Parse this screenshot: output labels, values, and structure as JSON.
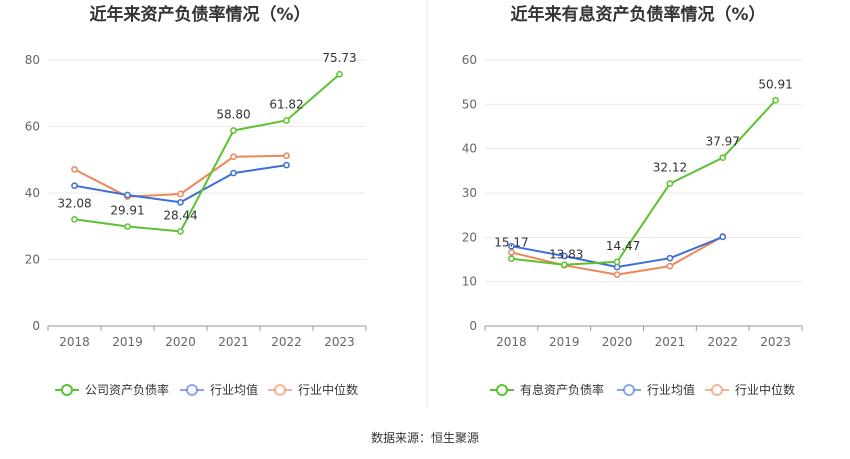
{
  "source": "数据来源：恒生聚源",
  "chart_data": [
    {
      "type": "line",
      "title": "近年来资产负债率情况（%）",
      "categories": [
        "2018",
        "2019",
        "2020",
        "2021",
        "2022",
        "2023"
      ],
      "ylim": [
        0,
        80
      ],
      "yticks": [
        0,
        20,
        40,
        60,
        80
      ],
      "grid": true,
      "legend_position": "bottom",
      "series": [
        {
          "name": "公司资产负债率",
          "color": "#5cc22f",
          "values": [
            32.08,
            29.91,
            28.44,
            58.8,
            61.82,
            75.73
          ],
          "labels": [
            "32.08",
            "29.91",
            "28.44",
            "58.80",
            "61.82",
            "75.73"
          ]
        },
        {
          "name": "行业均值",
          "color": "#3d6fd6",
          "values": [
            42.2,
            39.4,
            37.2,
            46.0,
            48.4,
            null
          ]
        },
        {
          "name": "行业中位数",
          "color": "#ee8658",
          "values": [
            47.1,
            38.9,
            39.7,
            50.9,
            51.2,
            null
          ]
        }
      ]
    },
    {
      "type": "line",
      "title": "近年来有息资产负债率情况（%）",
      "categories": [
        "2018",
        "2019",
        "2020",
        "2021",
        "2022",
        "2023"
      ],
      "ylim": [
        0,
        60
      ],
      "yticks": [
        0,
        10,
        20,
        30,
        40,
        50,
        60
      ],
      "grid": true,
      "legend_position": "bottom",
      "series": [
        {
          "name": "有息资产负债率",
          "color": "#5cc22f",
          "values": [
            15.17,
            13.83,
            14.47,
            32.12,
            37.97,
            50.91
          ],
          "labels": [
            "15.17",
            "13.83",
            "14.47",
            "32.12",
            "37.97",
            "50.91"
          ]
        },
        {
          "name": "行业均值",
          "color": "#3d6fd6",
          "values": [
            18.0,
            15.8,
            13.3,
            15.3,
            20.1,
            null
          ]
        },
        {
          "name": "行业中位数",
          "color": "#ee8658",
          "values": [
            16.6,
            13.7,
            11.6,
            13.5,
            20.2,
            null
          ]
        }
      ]
    }
  ]
}
